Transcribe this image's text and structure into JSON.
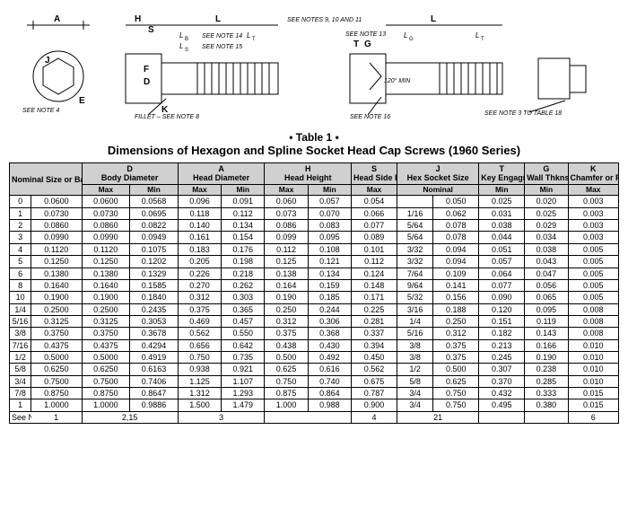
{
  "diagram": {
    "letters": [
      "A",
      "H",
      "S",
      "L",
      "L_B",
      "L_S",
      "L_T",
      "J",
      "F",
      "D",
      "E",
      "K",
      "G",
      "T",
      "L_G"
    ],
    "notes": {
      "n9": "SEE NOTES 9, 10 AND 11",
      "n13": "SEE NOTE 13",
      "n14": "SEE NOTE 14",
      "n15": "SEE NOTE 15",
      "n16": "SEE NOTE 16",
      "n4": "SEE NOTE 4",
      "n3": "SEE NOTE 3 TO TABLE 18",
      "fillet": "FILLET – SEE NOTE 8",
      "angle": "120° MIN"
    }
  },
  "title": {
    "number": "• Table 1 •",
    "text": "Dimensions of Hexagon and Spline Socket Head Cap Screws (1960 Series)"
  },
  "table": {
    "header": {
      "nominal": "Nominal Size or Basic Screw Diameter",
      "D": "D\nBody Diameter",
      "A": "A\nHead Diameter",
      "H": "H\nHead Height",
      "S": "S\nHead Side Height",
      "J": "J\nHex Socket Size",
      "T": "T\nKey Engagmt",
      "G": "G\nWall Thkns",
      "K": "K\nChamfer or Radius",
      "sub": {
        "max": "Max",
        "min": "Min",
        "nominal": "Nominal"
      }
    },
    "rows": [
      {
        "i": "0",
        "nom": "0.0600",
        "Dmax": "0.0600",
        "Dmin": "0.0568",
        "Amax": "0.096",
        "Amin": "0.091",
        "Hmax": "0.060",
        "Hmin": "0.057",
        "S": "0.054",
        "Jn": "",
        "Jv": "0.050",
        "T": "0.025",
        "G": "0.020",
        "K": "0.003"
      },
      {
        "i": "1",
        "nom": "0.0730",
        "Dmax": "0.0730",
        "Dmin": "0.0695",
        "Amax": "0.118",
        "Amin": "0.112",
        "Hmax": "0.073",
        "Hmin": "0.070",
        "S": "0.066",
        "Jn": "1/16",
        "Jv": "0.062",
        "T": "0.031",
        "G": "0.025",
        "K": "0.003"
      },
      {
        "i": "2",
        "nom": "0.0860",
        "Dmax": "0.0860",
        "Dmin": "0.0822",
        "Amax": "0.140",
        "Amin": "0.134",
        "Hmax": "0.086",
        "Hmin": "0.083",
        "S": "0.077",
        "Jn": "5/64",
        "Jv": "0.078",
        "T": "0.038",
        "G": "0.029",
        "K": "0.003"
      },
      {
        "i": "3",
        "nom": "0.0990",
        "Dmax": "0.0990",
        "Dmin": "0.0949",
        "Amax": "0.161",
        "Amin": "0.154",
        "Hmax": "0.099",
        "Hmin": "0.095",
        "S": "0.089",
        "Jn": "5/64",
        "Jv": "0.078",
        "T": "0.044",
        "G": "0.034",
        "K": "0.003"
      },
      {
        "i": "4",
        "nom": "0.1120",
        "Dmax": "0.1120",
        "Dmin": "0.1075",
        "Amax": "0.183",
        "Amin": "0.176",
        "Hmax": "0.112",
        "Hmin": "0.108",
        "S": "0.101",
        "Jn": "3/32",
        "Jv": "0.094",
        "T": "0.051",
        "G": "0.038",
        "K": "0.005"
      },
      {
        "i": "5",
        "nom": "0.1250",
        "Dmax": "0.1250",
        "Dmin": "0.1202",
        "Amax": "0.205",
        "Amin": "0.198",
        "Hmax": "0.125",
        "Hmin": "0.121",
        "S": "0.112",
        "Jn": "3/32",
        "Jv": "0.094",
        "T": "0.057",
        "G": "0.043",
        "K": "0.005"
      },
      {
        "i": "6",
        "nom": "0.1380",
        "Dmax": "0.1380",
        "Dmin": "0.1329",
        "Amax": "0.226",
        "Amin": "0.218",
        "Hmax": "0.138",
        "Hmin": "0.134",
        "S": "0.124",
        "Jn": "7/64",
        "Jv": "0.109",
        "T": "0.064",
        "G": "0.047",
        "K": "0.005"
      },
      {
        "i": "8",
        "nom": "0.1640",
        "Dmax": "0.1640",
        "Dmin": "0.1585",
        "Amax": "0.270",
        "Amin": "0.262",
        "Hmax": "0.164",
        "Hmin": "0.159",
        "S": "0.148",
        "Jn": "9/64",
        "Jv": "0.141",
        "T": "0.077",
        "G": "0.056",
        "K": "0.005"
      },
      {
        "i": "10",
        "nom": "0.1900",
        "Dmax": "0.1900",
        "Dmin": "0.1840",
        "Amax": "0.312",
        "Amin": "0.303",
        "Hmax": "0.190",
        "Hmin": "0.185",
        "S": "0.171",
        "Jn": "5/32",
        "Jv": "0.156",
        "T": "0.090",
        "G": "0.065",
        "K": "0.005"
      },
      {
        "i": "1/4",
        "nom": "0.2500",
        "Dmax": "0.2500",
        "Dmin": "0.2435",
        "Amax": "0.375",
        "Amin": "0.365",
        "Hmax": "0.250",
        "Hmin": "0.244",
        "S": "0.225",
        "Jn": "3/16",
        "Jv": "0.188",
        "T": "0.120",
        "G": "0.095",
        "K": "0.008"
      },
      {
        "i": "5/16",
        "nom": "0.3125",
        "Dmax": "0.3125",
        "Dmin": "0.3053",
        "Amax": "0.469",
        "Amin": "0.457",
        "Hmax": "0.312",
        "Hmin": "0.306",
        "S": "0.281",
        "Jn": "1/4",
        "Jv": "0.250",
        "T": "0.151",
        "G": "0.119",
        "K": "0.008"
      },
      {
        "i": "3/8",
        "nom": "0.3750",
        "Dmax": "0.3750",
        "Dmin": "0.3678",
        "Amax": "0.562",
        "Amin": "0.550",
        "Hmax": "0.375",
        "Hmin": "0.368",
        "S": "0.337",
        "Jn": "5/16",
        "Jv": "0.312",
        "T": "0.182",
        "G": "0.143",
        "K": "0.008"
      },
      {
        "i": "7/16",
        "nom": "0.4375",
        "Dmax": "0.4375",
        "Dmin": "0.4294",
        "Amax": "0.656",
        "Amin": "0.642",
        "Hmax": "0.438",
        "Hmin": "0.430",
        "S": "0.394",
        "Jn": "3/8",
        "Jv": "0.375",
        "T": "0.213",
        "G": "0.166",
        "K": "0.010"
      },
      {
        "i": "1/2",
        "nom": "0.5000",
        "Dmax": "0.5000",
        "Dmin": "0.4919",
        "Amax": "0.750",
        "Amin": "0.735",
        "Hmax": "0.500",
        "Hmin": "0.492",
        "S": "0.450",
        "Jn": "3/8",
        "Jv": "0.375",
        "T": "0.245",
        "G": "0.190",
        "K": "0.010"
      },
      {
        "i": "5/8",
        "nom": "0.6250",
        "Dmax": "0.6250",
        "Dmin": "0.6163",
        "Amax": "0.938",
        "Amin": "0.921",
        "Hmax": "0.625",
        "Hmin": "0.616",
        "S": "0.562",
        "Jn": "1/2",
        "Jv": "0.500",
        "T": "0.307",
        "G": "0.238",
        "K": "0.010"
      },
      {
        "i": "3/4",
        "nom": "0.7500",
        "Dmax": "0.7500",
        "Dmin": "0.7406",
        "Amax": "1.125",
        "Amin": "1.107",
        "Hmax": "0.750",
        "Hmin": "0.740",
        "S": "0.675",
        "Jn": "5/8",
        "Jv": "0.625",
        "T": "0.370",
        "G": "0.285",
        "K": "0.010"
      },
      {
        "i": "7/8",
        "nom": "0.8750",
        "Dmax": "0.8750",
        "Dmin": "0.8647",
        "Amax": "1.312",
        "Amin": "1.293",
        "Hmax": "0.875",
        "Hmin": "0.864",
        "S": "0.787",
        "Jn": "3/4",
        "Jv": "0.750",
        "T": "0.432",
        "G": "0.333",
        "K": "0.015"
      },
      {
        "i": "1",
        "nom": "1.0000",
        "Dmax": "1.0000",
        "Dmin": "0.9886",
        "Amax": "1.500",
        "Amin": "1.479",
        "Hmax": "1.000",
        "Hmin": "0.988",
        "S": "0.900",
        "Jn": "3/4",
        "Jv": "0.750",
        "T": "0.495",
        "G": "0.380",
        "K": "0.015"
      }
    ],
    "seenotes": {
      "label": "See Notes",
      "cells": [
        "1",
        "2,15",
        "3",
        "",
        "4",
        "21",
        "",
        "",
        "6"
      ]
    }
  }
}
